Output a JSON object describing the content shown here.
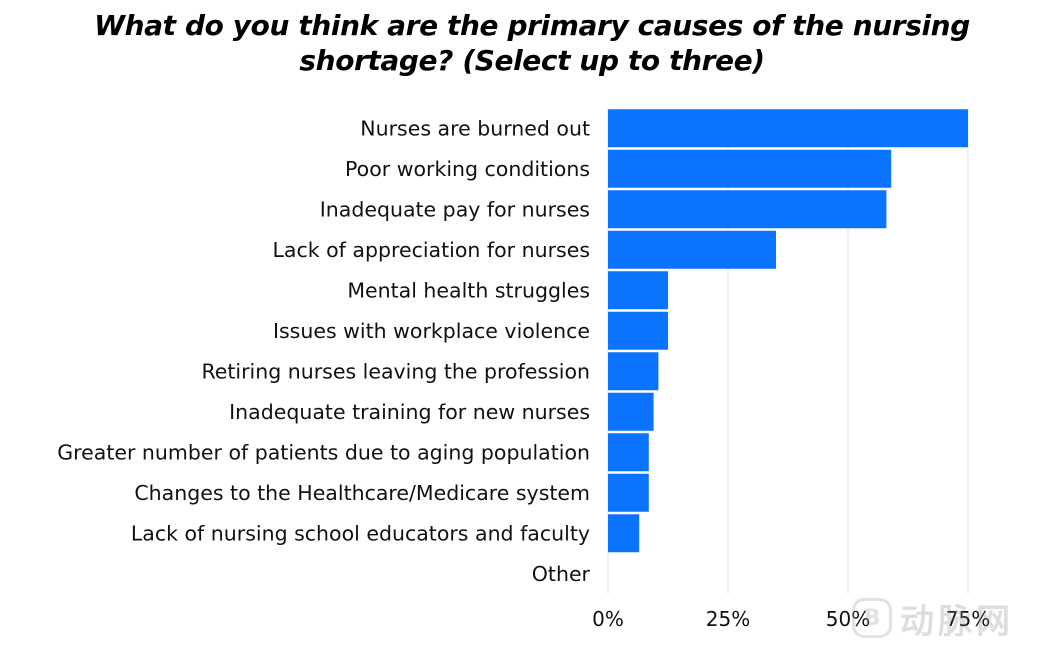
{
  "chart_data": {
    "type": "bar",
    "orientation": "horizontal",
    "title_line1": "What do you think are the primary causes of the nursing",
    "title_line2": "shortage? (Select up to three)",
    "categories": [
      "Nurses are burned out",
      "Poor working conditions",
      "Inadequate pay for nurses",
      "Lack of appreciation for nurses",
      "Mental health struggles",
      "Issues with workplace violence",
      "Retiring nurses leaving the profession",
      "Inadequate training for new nurses",
      "Greater number of patients due to aging population",
      "Changes to the Healthcare/Medicare system",
      "Lack of nursing school educators and faculty",
      "Other"
    ],
    "values": [
      75,
      59,
      58,
      35,
      12.5,
      12.5,
      10.5,
      9.5,
      8.5,
      8.5,
      6.5,
      0
    ],
    "x_ticks": [
      0,
      25,
      50,
      75
    ],
    "x_tick_labels": [
      "0%",
      "25%",
      "50%",
      "75%"
    ],
    "xlim": [
      0,
      75
    ],
    "unit": "%",
    "bar_color": "#0a74ff",
    "grid": "vertical",
    "grid_color": "#e3e3e3",
    "xlabel": "",
    "ylabel": ""
  },
  "watermark": {
    "logo_text": "B",
    "text": "动脉网"
  }
}
